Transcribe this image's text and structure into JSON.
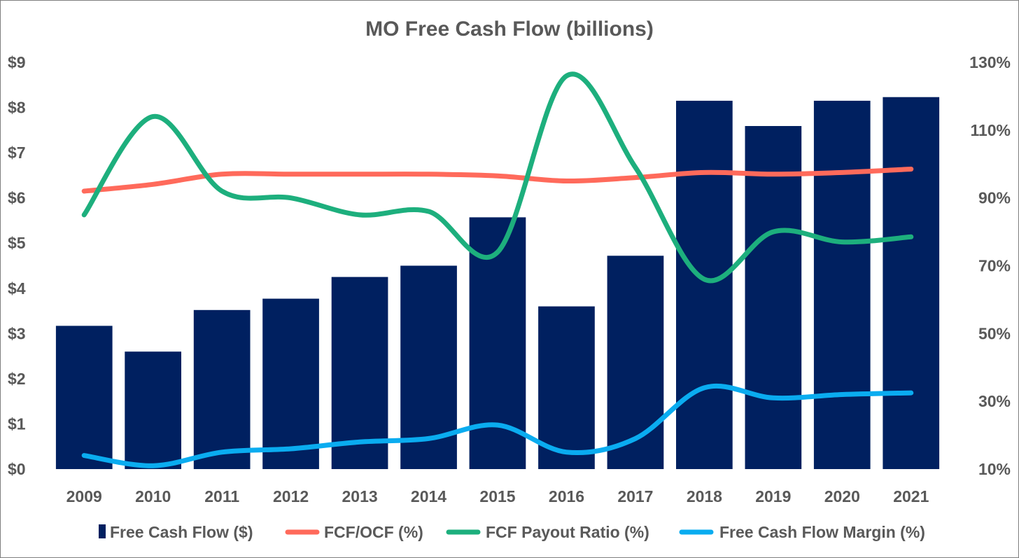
{
  "chart_data": {
    "type": "bar",
    "title": "MO Free Cash Flow (billions)",
    "categories": [
      "2009",
      "2010",
      "2011",
      "2012",
      "2013",
      "2014",
      "2015",
      "2016",
      "2017",
      "2018",
      "2019",
      "2020",
      "2021"
    ],
    "y_left": {
      "range": [
        0,
        9
      ],
      "ticks": [
        0,
        1,
        2,
        3,
        4,
        5,
        6,
        7,
        8,
        9
      ],
      "tick_labels": [
        "$0",
        "$1",
        "$2",
        "$3",
        "$4",
        "$5",
        "$6",
        "$7",
        "$8",
        "$9"
      ]
    },
    "y_right": {
      "range": [
        10,
        130
      ],
      "ticks": [
        10,
        30,
        50,
        70,
        90,
        110,
        130
      ],
      "tick_labels": [
        "10%",
        "30%",
        "50%",
        "70%",
        "90%",
        "110%",
        "130%"
      ]
    },
    "series": [
      {
        "name": "Free Cash Flow ($)",
        "type": "bar",
        "axis": "left",
        "color": "#002060",
        "values": [
          3.17,
          2.6,
          3.52,
          3.77,
          4.25,
          4.5,
          5.57,
          3.6,
          4.72,
          8.15,
          7.59,
          8.15,
          8.23
        ]
      },
      {
        "name": "FCF/OCF (%)",
        "type": "line",
        "axis": "right",
        "color": "#FF6A5B",
        "values": [
          92,
          94,
          97,
          97,
          97,
          97,
          96.5,
          95,
          96,
          97.5,
          97,
          97.5,
          98.5
        ]
      },
      {
        "name": "FCF Payout Ratio (%)",
        "type": "line",
        "axis": "right",
        "color": "#1DAF7D",
        "values": [
          85,
          114,
          92,
          90,
          85,
          86,
          74,
          126,
          99,
          66,
          80,
          77,
          78.5
        ]
      },
      {
        "name": "Free Cash Flow Margin (%)",
        "type": "line",
        "axis": "right",
        "color": "#0AACF0",
        "values": [
          14,
          11,
          15,
          16,
          18,
          19,
          23,
          15,
          19,
          34,
          31,
          32,
          32.5
        ]
      }
    ],
    "legend_position": "bottom",
    "grid": false
  }
}
